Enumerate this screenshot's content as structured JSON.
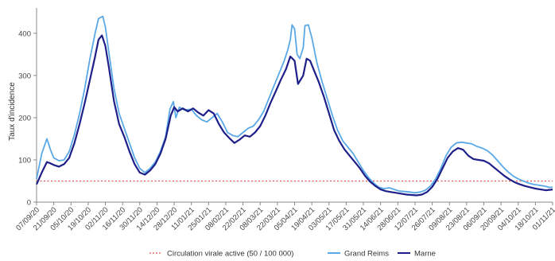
{
  "chart_data": {
    "type": "line",
    "title": "",
    "xlabel": "",
    "ylabel": "Taux d'incidence",
    "ylim": [
      0,
      460
    ],
    "yticks": [
      0,
      100,
      200,
      300,
      400
    ],
    "grid": false,
    "legend_position": "bottom",
    "x_categories": [
      "07/09/20",
      "21/09/20",
      "05/10/20",
      "19/10/20",
      "02/11/20",
      "16/11/20",
      "30/11/20",
      "14/12/20",
      "28/12/20",
      "11/01/21",
      "25/01/21",
      "08/02/21",
      "22/02/21",
      "08/03/21",
      "22/03/21",
      "05/04/21",
      "19/04/21",
      "03/05/21",
      "17/05/21",
      "31/05/21",
      "14/06/21",
      "28/06/21",
      "12/07/21",
      "26/07/21",
      "09/08/21",
      "23/08/21",
      "06/09/21",
      "20/09/21",
      "04/10/21",
      "18/10/21",
      "01/11/21"
    ],
    "reference_line": {
      "name": "Circulation virale active (50 / 100 000)",
      "value": 50,
      "color": "#e8504a"
    },
    "series": [
      {
        "name": "Grand Reims",
        "color": "#5aa9e6",
        "points": [
          [
            0,
            55
          ],
          [
            0.3,
            115
          ],
          [
            0.6,
            150
          ],
          [
            0.8,
            125
          ],
          [
            1,
            105
          ],
          [
            1.3,
            98
          ],
          [
            1.6,
            100
          ],
          [
            1.9,
            120
          ],
          [
            2.2,
            160
          ],
          [
            2.5,
            210
          ],
          [
            2.8,
            270
          ],
          [
            3.1,
            340
          ],
          [
            3.4,
            400
          ],
          [
            3.6,
            435
          ],
          [
            3.85,
            440
          ],
          [
            4.0,
            415
          ],
          [
            4.2,
            355
          ],
          [
            4.5,
            270
          ],
          [
            4.8,
            210
          ],
          [
            5.1,
            175
          ],
          [
            5.4,
            140
          ],
          [
            5.7,
            105
          ],
          [
            6.0,
            80
          ],
          [
            6.3,
            70
          ],
          [
            6.6,
            80
          ],
          [
            6.9,
            95
          ],
          [
            7.2,
            120
          ],
          [
            7.5,
            155
          ],
          [
            7.75,
            220
          ],
          [
            7.95,
            238
          ],
          [
            8.1,
            200
          ],
          [
            8.3,
            225
          ],
          [
            8.6,
            218
          ],
          [
            9.0,
            220
          ],
          [
            9.3,
            205
          ],
          [
            9.6,
            195
          ],
          [
            9.9,
            190
          ],
          [
            10.2,
            200
          ],
          [
            10.5,
            210
          ],
          [
            10.8,
            190
          ],
          [
            11.1,
            165
          ],
          [
            11.4,
            158
          ],
          [
            11.7,
            155
          ],
          [
            12.0,
            165
          ],
          [
            12.3,
            175
          ],
          [
            12.6,
            180
          ],
          [
            12.9,
            195
          ],
          [
            13.2,
            215
          ],
          [
            13.5,
            245
          ],
          [
            13.8,
            275
          ],
          [
            14.1,
            305
          ],
          [
            14.4,
            335
          ],
          [
            14.6,
            360
          ],
          [
            14.75,
            385
          ],
          [
            14.85,
            420
          ],
          [
            15.0,
            410
          ],
          [
            15.15,
            350
          ],
          [
            15.3,
            340
          ],
          [
            15.5,
            365
          ],
          [
            15.6,
            418
          ],
          [
            15.8,
            420
          ],
          [
            16.0,
            390
          ],
          [
            16.3,
            330
          ],
          [
            16.6,
            285
          ],
          [
            16.9,
            245
          ],
          [
            17.2,
            205
          ],
          [
            17.5,
            170
          ],
          [
            17.8,
            145
          ],
          [
            18.1,
            130
          ],
          [
            18.4,
            115
          ],
          [
            18.7,
            95
          ],
          [
            19.0,
            75
          ],
          [
            19.3,
            58
          ],
          [
            19.6,
            45
          ],
          [
            19.9,
            35
          ],
          [
            20.2,
            32
          ],
          [
            20.5,
            34
          ],
          [
            20.8,
            30
          ],
          [
            21.1,
            26
          ],
          [
            21.4,
            25
          ],
          [
            21.7,
            24
          ],
          [
            22.0,
            22
          ],
          [
            22.3,
            24
          ],
          [
            22.6,
            28
          ],
          [
            22.9,
            38
          ],
          [
            23.2,
            55
          ],
          [
            23.5,
            80
          ],
          [
            23.8,
            110
          ],
          [
            24.1,
            130
          ],
          [
            24.4,
            140
          ],
          [
            24.7,
            142
          ],
          [
            25.0,
            140
          ],
          [
            25.3,
            138
          ],
          [
            25.6,
            132
          ],
          [
            25.9,
            128
          ],
          [
            26.2,
            122
          ],
          [
            26.5,
            112
          ],
          [
            26.8,
            98
          ],
          [
            27.1,
            84
          ],
          [
            27.4,
            72
          ],
          [
            27.7,
            62
          ],
          [
            28.0,
            55
          ],
          [
            28.3,
            50
          ],
          [
            28.6,
            45
          ],
          [
            28.9,
            42
          ],
          [
            29.2,
            40
          ],
          [
            29.5,
            38
          ],
          [
            29.8,
            35
          ],
          [
            30.0,
            35
          ]
        ]
      },
      {
        "name": "Marne",
        "color": "#1f1f8a",
        "points": [
          [
            0,
            42
          ],
          [
            0.3,
            70
          ],
          [
            0.6,
            95
          ],
          [
            0.8,
            92
          ],
          [
            1,
            88
          ],
          [
            1.3,
            84
          ],
          [
            1.6,
            90
          ],
          [
            1.9,
            105
          ],
          [
            2.2,
            140
          ],
          [
            2.5,
            185
          ],
          [
            2.8,
            235
          ],
          [
            3.1,
            290
          ],
          [
            3.4,
            345
          ],
          [
            3.6,
            385
          ],
          [
            3.8,
            395
          ],
          [
            4.0,
            370
          ],
          [
            4.2,
            320
          ],
          [
            4.5,
            240
          ],
          [
            4.8,
            185
          ],
          [
            5.1,
            155
          ],
          [
            5.4,
            120
          ],
          [
            5.7,
            90
          ],
          [
            6.0,
            70
          ],
          [
            6.3,
            65
          ],
          [
            6.6,
            75
          ],
          [
            6.9,
            90
          ],
          [
            7.2,
            115
          ],
          [
            7.5,
            150
          ],
          [
            7.8,
            205
          ],
          [
            8.0,
            225
          ],
          [
            8.2,
            215
          ],
          [
            8.5,
            222
          ],
          [
            8.8,
            215
          ],
          [
            9.1,
            222
          ],
          [
            9.4,
            212
          ],
          [
            9.7,
            205
          ],
          [
            10.0,
            218
          ],
          [
            10.3,
            210
          ],
          [
            10.6,
            185
          ],
          [
            10.9,
            165
          ],
          [
            11.2,
            152
          ],
          [
            11.5,
            140
          ],
          [
            11.8,
            148
          ],
          [
            12.1,
            158
          ],
          [
            12.4,
            155
          ],
          [
            12.7,
            165
          ],
          [
            13.0,
            180
          ],
          [
            13.3,
            205
          ],
          [
            13.6,
            235
          ],
          [
            13.9,
            262
          ],
          [
            14.2,
            290
          ],
          [
            14.5,
            315
          ],
          [
            14.75,
            345
          ],
          [
            15.0,
            335
          ],
          [
            15.2,
            280
          ],
          [
            15.5,
            300
          ],
          [
            15.7,
            340
          ],
          [
            15.9,
            335
          ],
          [
            16.1,
            315
          ],
          [
            16.4,
            285
          ],
          [
            16.7,
            250
          ],
          [
            17.0,
            210
          ],
          [
            17.3,
            170
          ],
          [
            17.6,
            145
          ],
          [
            17.9,
            125
          ],
          [
            18.2,
            110
          ],
          [
            18.5,
            95
          ],
          [
            18.8,
            80
          ],
          [
            19.1,
            62
          ],
          [
            19.4,
            48
          ],
          [
            19.7,
            38
          ],
          [
            20.0,
            30
          ],
          [
            20.3,
            26
          ],
          [
            20.6,
            24
          ],
          [
            20.9,
            22
          ],
          [
            21.2,
            20
          ],
          [
            21.5,
            18
          ],
          [
            21.8,
            17
          ],
          [
            22.1,
            16
          ],
          [
            22.4,
            18
          ],
          [
            22.7,
            24
          ],
          [
            23.0,
            36
          ],
          [
            23.3,
            55
          ],
          [
            23.6,
            80
          ],
          [
            23.9,
            105
          ],
          [
            24.2,
            120
          ],
          [
            24.5,
            128
          ],
          [
            24.8,
            124
          ],
          [
            25.1,
            110
          ],
          [
            25.4,
            102
          ],
          [
            25.7,
            100
          ],
          [
            26.0,
            98
          ],
          [
            26.3,
            92
          ],
          [
            26.6,
            82
          ],
          [
            26.9,
            72
          ],
          [
            27.2,
            62
          ],
          [
            27.5,
            54
          ],
          [
            27.8,
            47
          ],
          [
            28.1,
            42
          ],
          [
            28.4,
            38
          ],
          [
            28.7,
            35
          ],
          [
            29.0,
            32
          ],
          [
            29.3,
            30
          ],
          [
            29.6,
            28
          ],
          [
            30.0,
            30
          ]
        ]
      }
    ]
  },
  "legend": {
    "reference_label": "Circulation virale active (50 / 100 000)",
    "series1_label": "Grand Reims",
    "series2_label": "Marne"
  }
}
